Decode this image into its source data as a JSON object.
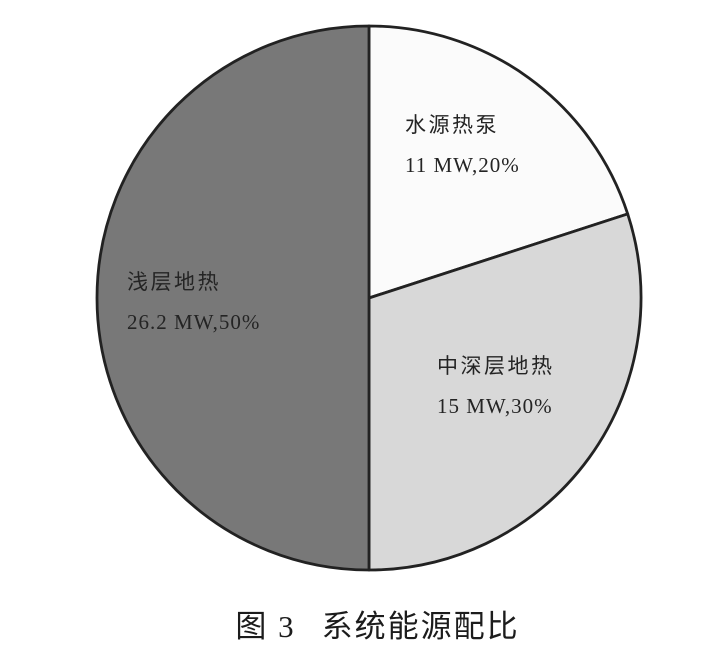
{
  "chart_data": {
    "type": "pie",
    "title": "图 3 系统能源配比",
    "unit": "MW",
    "start_angle": "12-o-clock, clockwise",
    "outline_color": "#222222",
    "background_color": "#ffffff",
    "slices": [
      {
        "label": "水源热泵",
        "value_mw": 11,
        "percent": 20,
        "display": "11 MW,20%",
        "color": "#fbfbfb"
      },
      {
        "label": "中深层地热",
        "value_mw": 15,
        "percent": 30,
        "display": "15 MW,30%",
        "color": "#d8d8d8"
      },
      {
        "label": "浅层地热",
        "value_mw": 26.2,
        "percent": 50,
        "display": "26.2 MW,50%",
        "color": "#787878"
      }
    ]
  },
  "caption": {
    "prefix": "图 3",
    "text": "系统能源配比"
  }
}
